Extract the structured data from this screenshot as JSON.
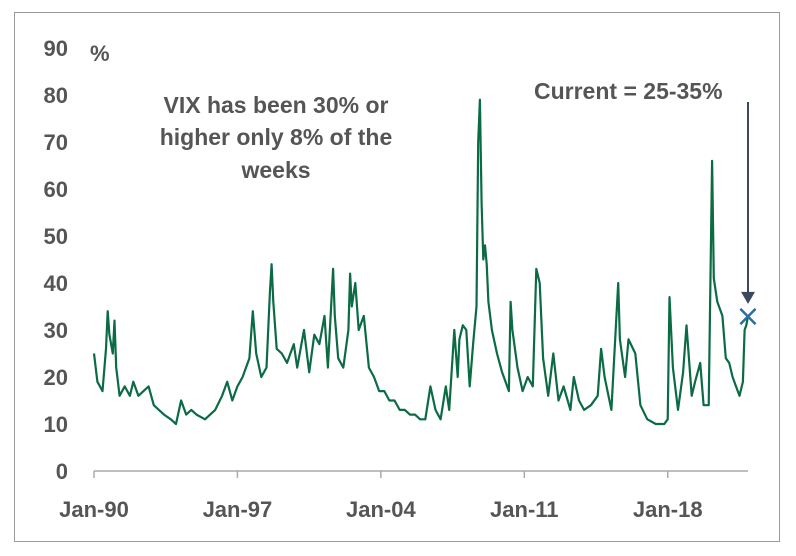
{
  "chart_data": {
    "type": "line",
    "title": "",
    "xlabel": "",
    "ylabel": "%",
    "ylim": [
      0,
      90
    ],
    "y_ticks": [
      "0",
      "10",
      "20",
      "30",
      "40",
      "50",
      "60",
      "70",
      "80",
      "90"
    ],
    "x_range": [
      "1990-01",
      "2021-12"
    ],
    "x_ticks": [
      {
        "label": "Jan-90",
        "date": "1990-01"
      },
      {
        "label": "Jan-97",
        "date": "1997-01"
      },
      {
        "label": "Jan-04",
        "date": "2004-01"
      },
      {
        "label": "Jan-11",
        "date": "2011-01"
      },
      {
        "label": "Jan-18",
        "date": "2018-01"
      }
    ],
    "grid": false,
    "series": [
      {
        "color": "#0b6b44",
        "points": [
          [
            "1990-01",
            25
          ],
          [
            "1990-03",
            19
          ],
          [
            "1990-06",
            17
          ],
          [
            "1990-08",
            26
          ],
          [
            "1990-09",
            34
          ],
          [
            "1990-10",
            29
          ],
          [
            "1990-12",
            25
          ],
          [
            "1991-01",
            32
          ],
          [
            "1991-02",
            22
          ],
          [
            "1991-04",
            16
          ],
          [
            "1991-07",
            18
          ],
          [
            "1991-10",
            16
          ],
          [
            "1991-12",
            19
          ],
          [
            "1992-03",
            16
          ],
          [
            "1992-06",
            17
          ],
          [
            "1992-09",
            18
          ],
          [
            "1992-12",
            14
          ],
          [
            "1993-03",
            13
          ],
          [
            "1993-06",
            12
          ],
          [
            "1993-10",
            11
          ],
          [
            "1994-01",
            10
          ],
          [
            "1994-04",
            15
          ],
          [
            "1994-07",
            12
          ],
          [
            "1994-10",
            13
          ],
          [
            "1995-01",
            12
          ],
          [
            "1995-06",
            11
          ],
          [
            "1995-12",
            13
          ],
          [
            "1996-04",
            16
          ],
          [
            "1996-07",
            19
          ],
          [
            "1996-10",
            15
          ],
          [
            "1997-01",
            18
          ],
          [
            "1997-04",
            20
          ],
          [
            "1997-08",
            24
          ],
          [
            "1997-10",
            34
          ],
          [
            "1997-12",
            25
          ],
          [
            "1998-03",
            20
          ],
          [
            "1998-06",
            22
          ],
          [
            "1998-08",
            38
          ],
          [
            "1998-09",
            44
          ],
          [
            "1998-10",
            36
          ],
          [
            "1998-12",
            26
          ],
          [
            "1999-03",
            25
          ],
          [
            "1999-06",
            23
          ],
          [
            "1999-10",
            27
          ],
          [
            "1999-12",
            22
          ],
          [
            "2000-04",
            30
          ],
          [
            "2000-07",
            21
          ],
          [
            "2000-10",
            29
          ],
          [
            "2001-01",
            27
          ],
          [
            "2001-04",
            33
          ],
          [
            "2001-06",
            22
          ],
          [
            "2001-09",
            43
          ],
          [
            "2001-10",
            33
          ],
          [
            "2001-12",
            24
          ],
          [
            "2002-03",
            22
          ],
          [
            "2002-06",
            30
          ],
          [
            "2002-07",
            42
          ],
          [
            "2002-08",
            35
          ],
          [
            "2002-10",
            40
          ],
          [
            "2002-12",
            30
          ],
          [
            "2003-03",
            33
          ],
          [
            "2003-06",
            22
          ],
          [
            "2003-09",
            20
          ],
          [
            "2003-12",
            17
          ],
          [
            "2004-03",
            17
          ],
          [
            "2004-06",
            15
          ],
          [
            "2004-09",
            15
          ],
          [
            "2004-12",
            13
          ],
          [
            "2005-03",
            13
          ],
          [
            "2005-06",
            12
          ],
          [
            "2005-09",
            12
          ],
          [
            "2005-12",
            11
          ],
          [
            "2006-03",
            11
          ],
          [
            "2006-06",
            18
          ],
          [
            "2006-09",
            13
          ],
          [
            "2006-12",
            11
          ],
          [
            "2007-03",
            18
          ],
          [
            "2007-05",
            13
          ],
          [
            "2007-08",
            30
          ],
          [
            "2007-10",
            20
          ],
          [
            "2007-11",
            28
          ],
          [
            "2008-01",
            31
          ],
          [
            "2008-03",
            30
          ],
          [
            "2008-05",
            18
          ],
          [
            "2008-07",
            27
          ],
          [
            "2008-09",
            35
          ],
          [
            "2008-10",
            70
          ],
          [
            "2008-11",
            79
          ],
          [
            "2008-12",
            57
          ],
          [
            "2009-01",
            45
          ],
          [
            "2009-02",
            48
          ],
          [
            "2009-03",
            44
          ],
          [
            "2009-04",
            36
          ],
          [
            "2009-06",
            30
          ],
          [
            "2009-09",
            25
          ],
          [
            "2009-12",
            21
          ],
          [
            "2010-04",
            17
          ],
          [
            "2010-05",
            36
          ],
          [
            "2010-06",
            30
          ],
          [
            "2010-09",
            22
          ],
          [
            "2010-12",
            17
          ],
          [
            "2011-03",
            20
          ],
          [
            "2011-06",
            18
          ],
          [
            "2011-08",
            43
          ],
          [
            "2011-10",
            40
          ],
          [
            "2011-12",
            24
          ],
          [
            "2012-03",
            16
          ],
          [
            "2012-06",
            25
          ],
          [
            "2012-09",
            15
          ],
          [
            "2012-12",
            18
          ],
          [
            "2013-04",
            13
          ],
          [
            "2013-06",
            20
          ],
          [
            "2013-09",
            15
          ],
          [
            "2013-12",
            13
          ],
          [
            "2014-04",
            14
          ],
          [
            "2014-08",
            16
          ],
          [
            "2014-10",
            26
          ],
          [
            "2014-12",
            20
          ],
          [
            "2015-04",
            13
          ],
          [
            "2015-08",
            40
          ],
          [
            "2015-09",
            28
          ],
          [
            "2015-12",
            20
          ],
          [
            "2016-02",
            28
          ],
          [
            "2016-06",
            25
          ],
          [
            "2016-09",
            14
          ],
          [
            "2017-01",
            11
          ],
          [
            "2017-06",
            10
          ],
          [
            "2017-11",
            10
          ],
          [
            "2018-01",
            11
          ],
          [
            "2018-02",
            37
          ],
          [
            "2018-04",
            22
          ],
          [
            "2018-07",
            13
          ],
          [
            "2018-10",
            21
          ],
          [
            "2018-12",
            31
          ],
          [
            "2019-03",
            16
          ],
          [
            "2019-05",
            19
          ],
          [
            "2019-08",
            23
          ],
          [
            "2019-10",
            14
          ],
          [
            "2020-01",
            14
          ],
          [
            "2020-02",
            40
          ],
          [
            "2020-03",
            66
          ],
          [
            "2020-04",
            41
          ],
          [
            "2020-06",
            36
          ],
          [
            "2020-09",
            33
          ],
          [
            "2020-11",
            24
          ],
          [
            "2021-01",
            23
          ],
          [
            "2021-03",
            20
          ],
          [
            "2021-05",
            18
          ],
          [
            "2021-07",
            16
          ],
          [
            "2021-09",
            19
          ],
          [
            "2021-10",
            30
          ],
          [
            "2021-11",
            31
          ],
          [
            "2021-12",
            33
          ]
        ]
      }
    ],
    "annotations": {
      "note_lines": [
        "VIX has been 30% or",
        "higher only 8% of the",
        "weeks"
      ],
      "current_label": "Current = 25-35%",
      "current_marker": {
        "date": "2021-12",
        "value": 33,
        "symbol": "×",
        "color": "#2e6f9e"
      },
      "arrow_color": "#3a4a5c"
    }
  }
}
